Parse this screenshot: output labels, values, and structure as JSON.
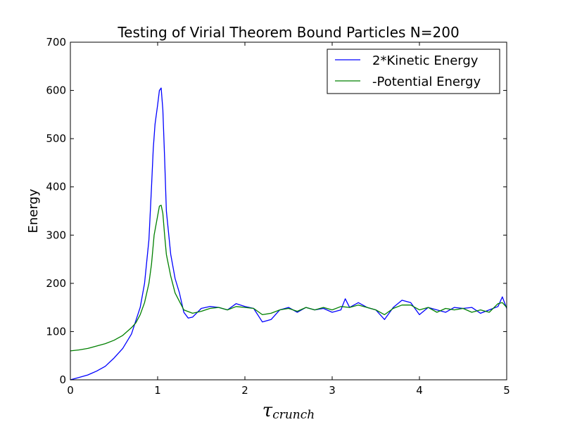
{
  "chart_data": {
    "type": "line",
    "title": "Testing of Virial Theorem Bound Particles N=200",
    "xlabel": {
      "main": "τ",
      "sub": "crunch"
    },
    "ylabel": "Energy",
    "xlim": [
      0,
      5
    ],
    "ylim": [
      0,
      700
    ],
    "xticks": [
      0,
      1,
      2,
      3,
      4,
      5
    ],
    "yticks": [
      0,
      100,
      200,
      300,
      400,
      500,
      600,
      700
    ],
    "grid": false,
    "legend_position": "top-right",
    "series": [
      {
        "name": "2*Kinetic Energy",
        "color": "#0000ff",
        "x": [
          0,
          0.1,
          0.2,
          0.3,
          0.4,
          0.5,
          0.6,
          0.7,
          0.8,
          0.85,
          0.9,
          0.93,
          0.95,
          0.97,
          1.0,
          1.02,
          1.04,
          1.06,
          1.08,
          1.1,
          1.15,
          1.2,
          1.25,
          1.3,
          1.35,
          1.4,
          1.5,
          1.6,
          1.7,
          1.8,
          1.9,
          2.0,
          2.1,
          2.2,
          2.3,
          2.4,
          2.5,
          2.6,
          2.7,
          2.8,
          2.9,
          3.0,
          3.1,
          3.15,
          3.2,
          3.3,
          3.4,
          3.5,
          3.6,
          3.7,
          3.8,
          3.9,
          4.0,
          4.1,
          4.2,
          4.3,
          4.4,
          4.5,
          4.6,
          4.7,
          4.8,
          4.9,
          4.95,
          5.0
        ],
        "y": [
          0,
          5,
          10,
          18,
          28,
          45,
          65,
          95,
          150,
          200,
          290,
          400,
          480,
          530,
          570,
          600,
          605,
          560,
          460,
          350,
          260,
          210,
          180,
          140,
          128,
          130,
          148,
          152,
          150,
          145,
          158,
          152,
          148,
          120,
          125,
          145,
          150,
          140,
          150,
          145,
          148,
          140,
          145,
          168,
          150,
          160,
          150,
          145,
          125,
          150,
          165,
          160,
          135,
          150,
          145,
          140,
          150,
          148,
          150,
          138,
          145,
          152,
          172,
          148
        ]
      },
      {
        "name": "-Potential Energy",
        "color": "#008000",
        "x": [
          0,
          0.1,
          0.2,
          0.3,
          0.4,
          0.5,
          0.6,
          0.7,
          0.75,
          0.8,
          0.85,
          0.9,
          0.93,
          0.96,
          1.0,
          1.02,
          1.04,
          1.06,
          1.08,
          1.1,
          1.15,
          1.2,
          1.3,
          1.4,
          1.5,
          1.6,
          1.7,
          1.8,
          1.9,
          2.0,
          2.1,
          2.2,
          2.3,
          2.4,
          2.5,
          2.6,
          2.7,
          2.8,
          2.9,
          3.0,
          3.1,
          3.2,
          3.3,
          3.4,
          3.5,
          3.6,
          3.7,
          3.8,
          3.9,
          4.0,
          4.1,
          4.2,
          4.3,
          4.4,
          4.5,
          4.6,
          4.7,
          4.8,
          4.9,
          4.95,
          5.0
        ],
        "y": [
          60,
          62,
          65,
          70,
          75,
          82,
          92,
          108,
          118,
          135,
          160,
          200,
          240,
          300,
          340,
          360,
          362,
          345,
          300,
          260,
          215,
          180,
          145,
          138,
          142,
          148,
          150,
          145,
          152,
          150,
          148,
          135,
          138,
          145,
          148,
          142,
          150,
          145,
          150,
          145,
          152,
          150,
          155,
          150,
          145,
          135,
          148,
          155,
          155,
          145,
          150,
          140,
          148,
          145,
          148,
          140,
          145,
          140,
          158,
          160,
          150
        ]
      }
    ]
  }
}
